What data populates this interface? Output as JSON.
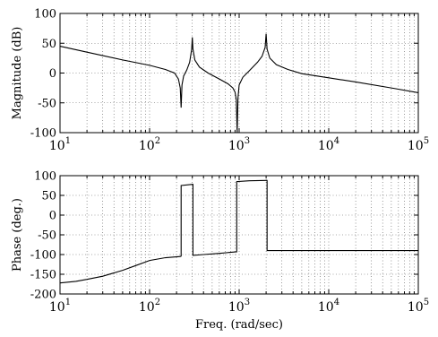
{
  "chart_data": [
    {
      "type": "line",
      "ylabel": "Magnitude (dB)",
      "xlabel": "",
      "xscale": "log",
      "xlim": [
        10,
        100000
      ],
      "ylim": [
        -100,
        100
      ],
      "yticks": [
        100,
        50,
        0,
        -50,
        -100
      ],
      "yticklabels": [
        "100",
        "50",
        "0",
        "-50",
        "-100"
      ],
      "xticks": [
        10,
        100,
        1000,
        10000,
        100000
      ],
      "xticklabels": [
        {
          "base": "10",
          "exp": "1"
        },
        {
          "base": "10",
          "exp": "2"
        },
        {
          "base": "10",
          "exp": "3"
        },
        {
          "base": "10",
          "exp": "4"
        },
        {
          "base": "10",
          "exp": "5"
        }
      ],
      "grid": true,
      "series": [
        {
          "x": [
            10,
            20,
            50,
            100,
            150,
            190,
            210,
            220,
            225,
            230,
            240,
            260,
            280,
            295,
            300,
            305,
            320,
            360,
            450,
            600,
            750,
            850,
            900,
            930,
            950,
            970,
            1000,
            1100,
            1300,
            1600,
            1800,
            1950,
            2000,
            2050,
            2200,
            2600,
            3500,
            5000,
            10000,
            20000,
            50000,
            100000
          ],
          "y": [
            45,
            35,
            22,
            13,
            6,
            0,
            -10,
            -25,
            -58,
            -20,
            -5,
            5,
            18,
            40,
            60,
            40,
            22,
            10,
            0,
            -10,
            -18,
            -25,
            -32,
            -45,
            -100,
            -42,
            -20,
            -7,
            4,
            18,
            28,
            43,
            66,
            40,
            25,
            14,
            6,
            -1,
            -8,
            -15,
            -25,
            -33
          ]
        }
      ]
    },
    {
      "type": "line",
      "ylabel": "Phase (deg.)",
      "xlabel": "Freq. (rad/sec)",
      "xscale": "log",
      "xlim": [
        10,
        100000
      ],
      "ylim": [
        -200,
        100
      ],
      "yticks": [
        100,
        50,
        0,
        -50,
        -100,
        -150,
        -200
      ],
      "yticklabels": [
        "100",
        "50",
        "0",
        "-50",
        "-100",
        "-150",
        "-200"
      ],
      "xticks": [
        10,
        100,
        1000,
        10000,
        100000
      ],
      "xticklabels": [
        {
          "base": "10",
          "exp": "1"
        },
        {
          "base": "10",
          "exp": "2"
        },
        {
          "base": "10",
          "exp": "3"
        },
        {
          "base": "10",
          "exp": "4"
        },
        {
          "base": "10",
          "exp": "5"
        }
      ],
      "grid": true,
      "series": [
        {
          "x": [
            10,
            15,
            20,
            30,
            50,
            70,
            100,
            150,
            220,
            225,
            225,
            300,
            305,
            305,
            400,
            600,
            935,
            940,
            940,
            1300,
            2000,
            2050,
            2050,
            5000,
            20000,
            100000
          ],
          "y": [
            -172,
            -168,
            -163,
            -155,
            -140,
            -128,
            -115,
            -108,
            -105,
            -104,
            75,
            78,
            78,
            -102,
            -100,
            -97,
            -93,
            -93,
            85,
            87,
            88,
            88,
            -90,
            -90,
            -90,
            -90
          ]
        }
      ]
    }
  ]
}
